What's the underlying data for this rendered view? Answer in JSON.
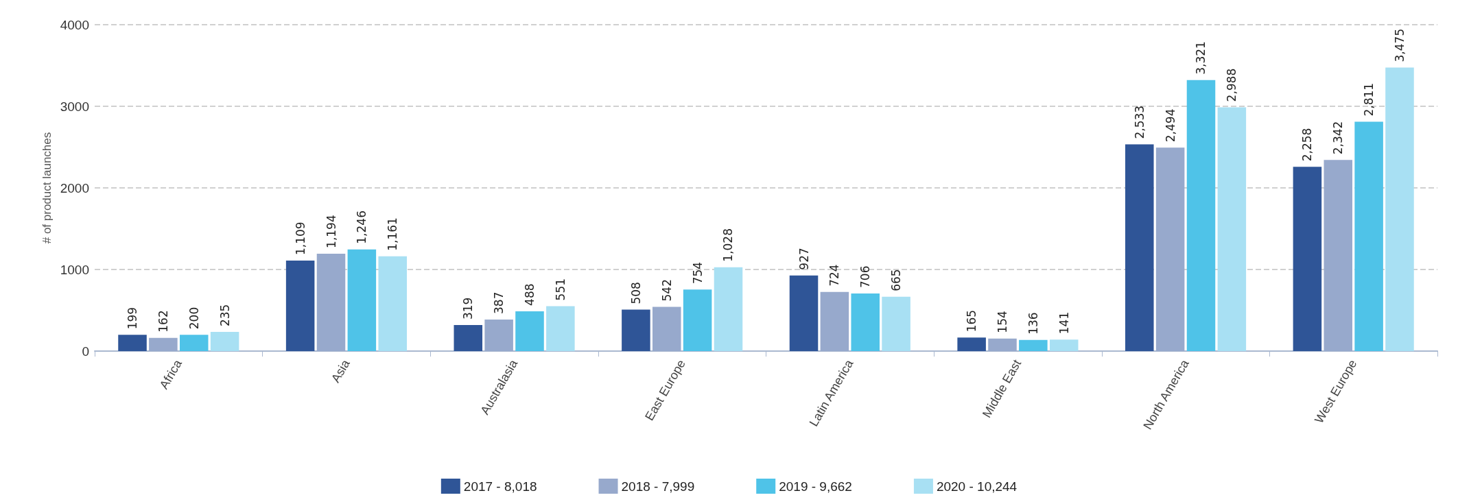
{
  "chart_data": {
    "type": "bar",
    "ylabel": "# of product launches",
    "categories": [
      "Africa",
      "Asia",
      "Australasia",
      "East Europe",
      "Latin America",
      "Middle East",
      "North America",
      "West Europe"
    ],
    "series": [
      {
        "name": "2017 - 8,018",
        "color": "#2f5597",
        "values": [
          199,
          1109,
          319,
          508,
          927,
          165,
          2533,
          2258
        ],
        "value_labels": [
          "199",
          "1,109",
          "319",
          "508",
          "927",
          "165",
          "2,533",
          "2,258"
        ]
      },
      {
        "name": "2018 - 7,999",
        "color": "#97a9cc",
        "values": [
          162,
          1194,
          387,
          542,
          724,
          154,
          2494,
          2342
        ],
        "value_labels": [
          "162",
          "1,194",
          "387",
          "542",
          "724",
          "154",
          "2,494",
          "2,342"
        ]
      },
      {
        "name": "2019 - 9,662",
        "color": "#4fc3e8",
        "values": [
          200,
          1246,
          488,
          754,
          706,
          136,
          3321,
          2811
        ],
        "value_labels": [
          "200",
          "1,246",
          "488",
          "754",
          "706",
          "136",
          "3,321",
          "2,811"
        ]
      },
      {
        "name": "2020 - 10,244",
        "color": "#a8e0f3",
        "values": [
          235,
          1161,
          551,
          1028,
          665,
          141,
          2988,
          3475
        ],
        "value_labels": [
          "235",
          "1,161",
          "551",
          "1,028",
          "665",
          "141",
          "2,988",
          "3,475"
        ]
      }
    ],
    "ylim": [
      0,
      4000
    ],
    "yticks": [
      0,
      1000,
      2000,
      3000,
      4000
    ],
    "grid": "y",
    "line_style": "dashed",
    "legend": "bottom"
  }
}
